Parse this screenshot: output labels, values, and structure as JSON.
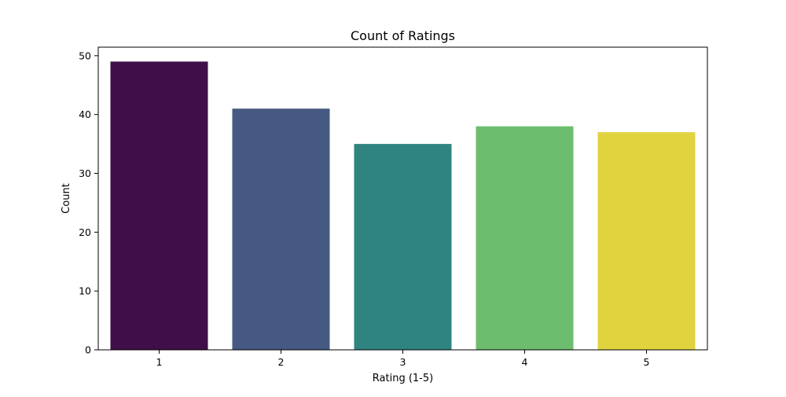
{
  "chart_data": {
    "type": "bar",
    "title": "Count of Ratings",
    "xlabel": "Rating (1-5)",
    "ylabel": "Count",
    "categories": [
      "1",
      "2",
      "3",
      "4",
      "5"
    ],
    "values": [
      49,
      41,
      35,
      38,
      37
    ],
    "colors": [
      "#400e48",
      "#465982",
      "#2f8480",
      "#6dbd6e",
      "#e0d33e"
    ],
    "ylim": [
      0,
      51.45
    ],
    "yticks": [
      0,
      10,
      20,
      30,
      40,
      50
    ],
    "grid": false
  }
}
